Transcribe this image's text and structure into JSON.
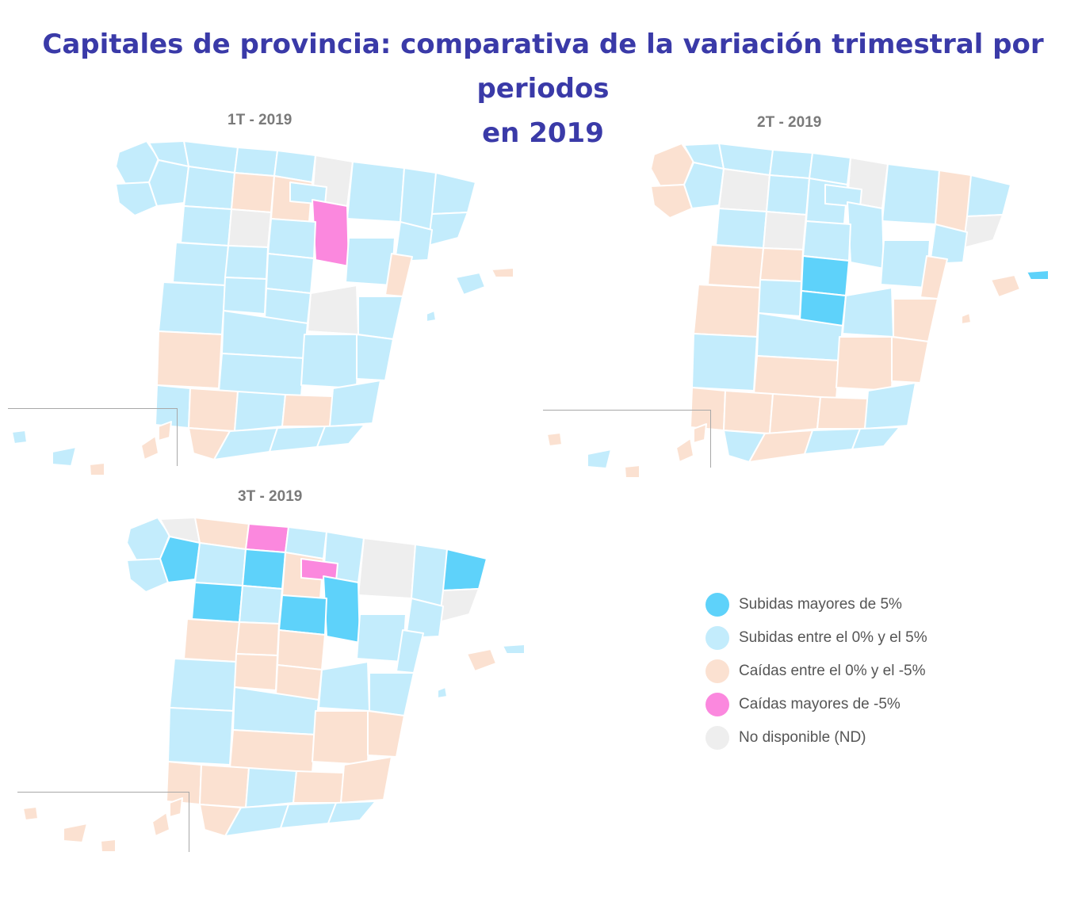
{
  "title_line1": "Capitales de provincia: comparativa de la variación trimestral por periodos",
  "title_line2": "en 2019",
  "colors": {
    "subidas_mayores": "#5ed2fa",
    "subidas_entre": "#c3ecfc",
    "caidas_entre": "#fbe1d1",
    "caidas_mayores": "#fb88de",
    "no_disponible": "#eeeeee"
  },
  "maps": [
    {
      "label": "1T - 2019"
    },
    {
      "label": "2T - 2019"
    },
    {
      "label": "3T - 2019"
    }
  ],
  "legend": [
    {
      "label": "Subidas mayores de 5%",
      "color": "#5ed2fa"
    },
    {
      "label": "Subidas entre el 0% y el 5%",
      "color": "#c3ecfc"
    },
    {
      "label": "Caídas entre el 0% y el -5%",
      "color": "#fbe1d1"
    },
    {
      "label": "Caídas mayores de -5%",
      "color": "#fb88de"
    },
    {
      "label": "No disponible (ND)",
      "color": "#eeeeee"
    }
  ]
}
